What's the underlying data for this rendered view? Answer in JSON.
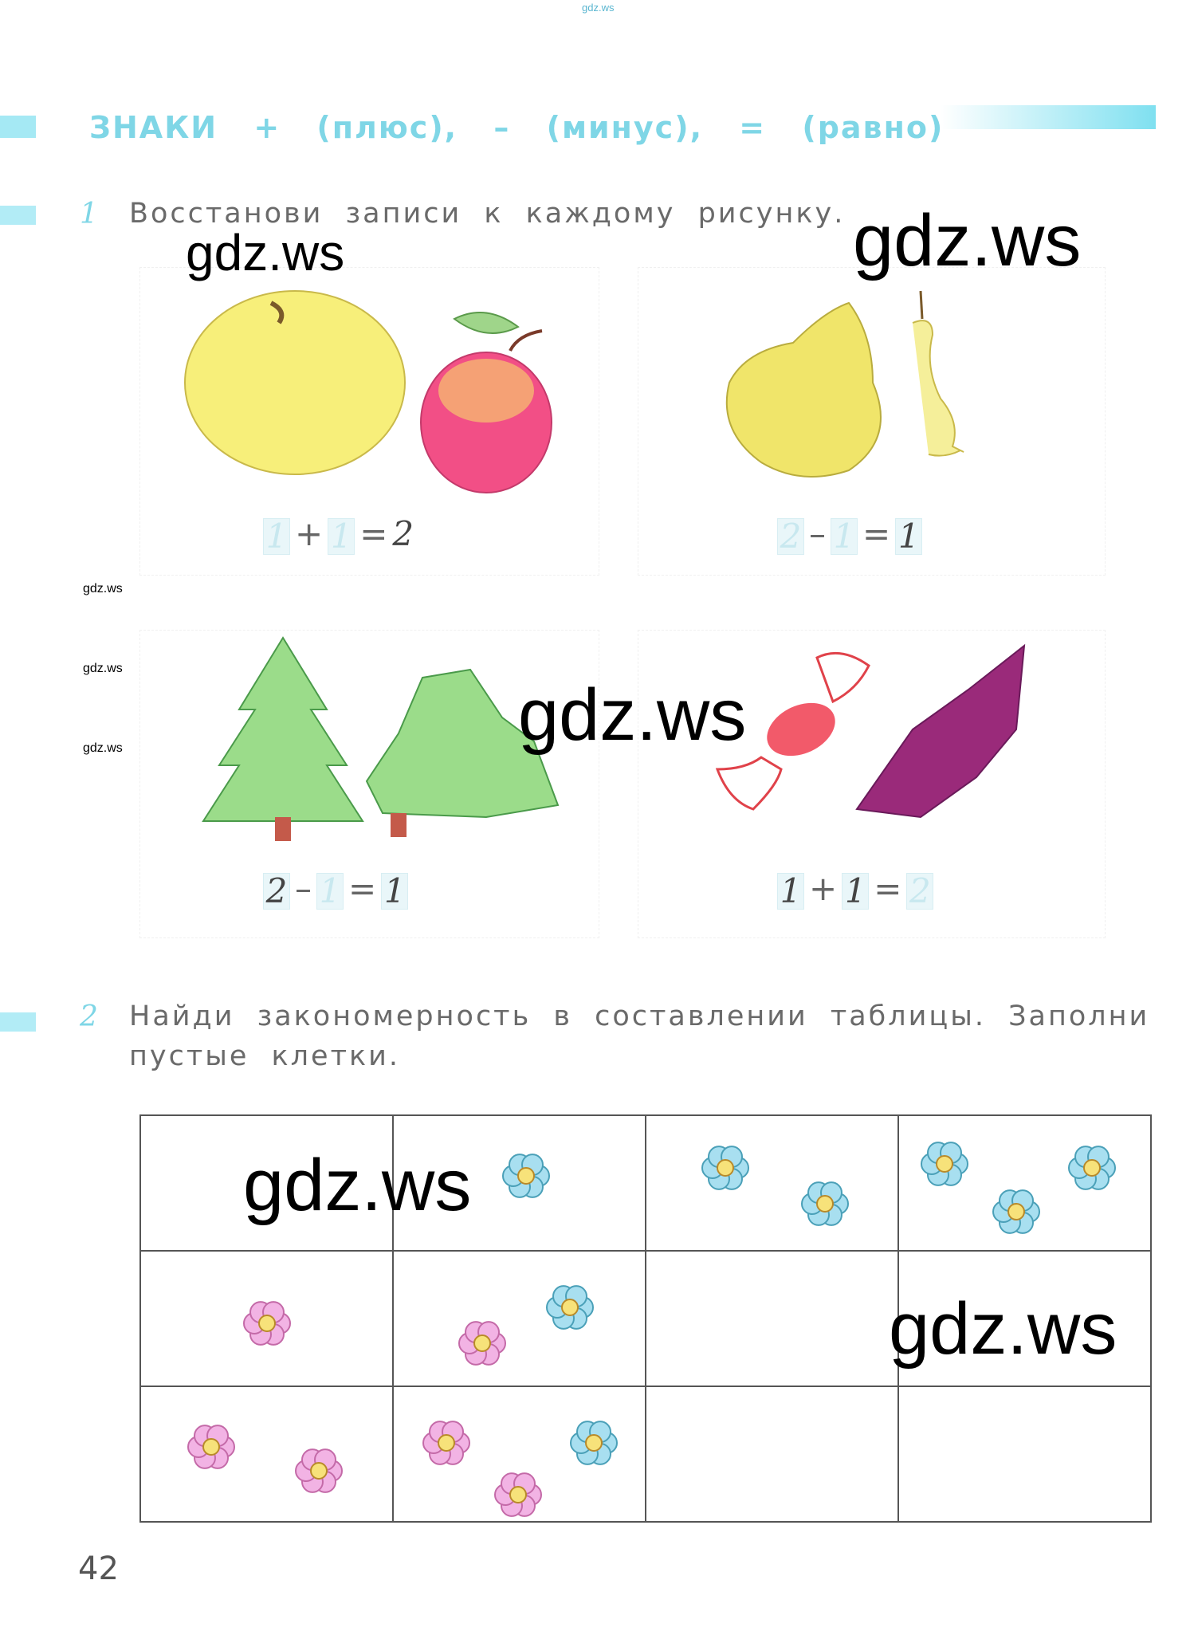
{
  "header": {
    "site_watermark": "gdz.ws"
  },
  "title": {
    "main": "ЗНАКИ",
    "plus_sign": "+",
    "plus": "(плюс),",
    "minus_sign": "–",
    "minus": "(минус),",
    "equals_sign": "=",
    "equals": "(равно)"
  },
  "task1": {
    "number": "1",
    "text": "Восстанови записи к каждому рисунку."
  },
  "panels": [
    {
      "a": "1",
      "op": "+",
      "b": "1",
      "eq": "=",
      "result": "2"
    },
    {
      "a": "2",
      "op": "–",
      "b": "1",
      "eq": "=",
      "result": "1"
    },
    {
      "a": "2",
      "op": "–",
      "b": "1",
      "eq": "=",
      "result": "1"
    },
    {
      "a": "1",
      "op": "+",
      "b": "1",
      "eq": "=",
      "result": "2"
    }
  ],
  "task2": {
    "number": "2",
    "line1": "Найди закономерность в составлении таблицы. Заполни",
    "line2": "пустые клетки."
  },
  "watermarks": [
    "gdz.ws",
    "gdz.ws",
    "gdz.ws",
    "gdz.ws",
    "gdz.ws"
  ],
  "side_watermarks": [
    "gdz.ws",
    "gdz.ws",
    "gdz.ws"
  ],
  "page_number": "42",
  "colors": {
    "accent": "#7fd6e6",
    "flower_blue": "#a8dff0",
    "flower_pink": "#f2b3e4",
    "flower_center": "#f7e27a"
  }
}
